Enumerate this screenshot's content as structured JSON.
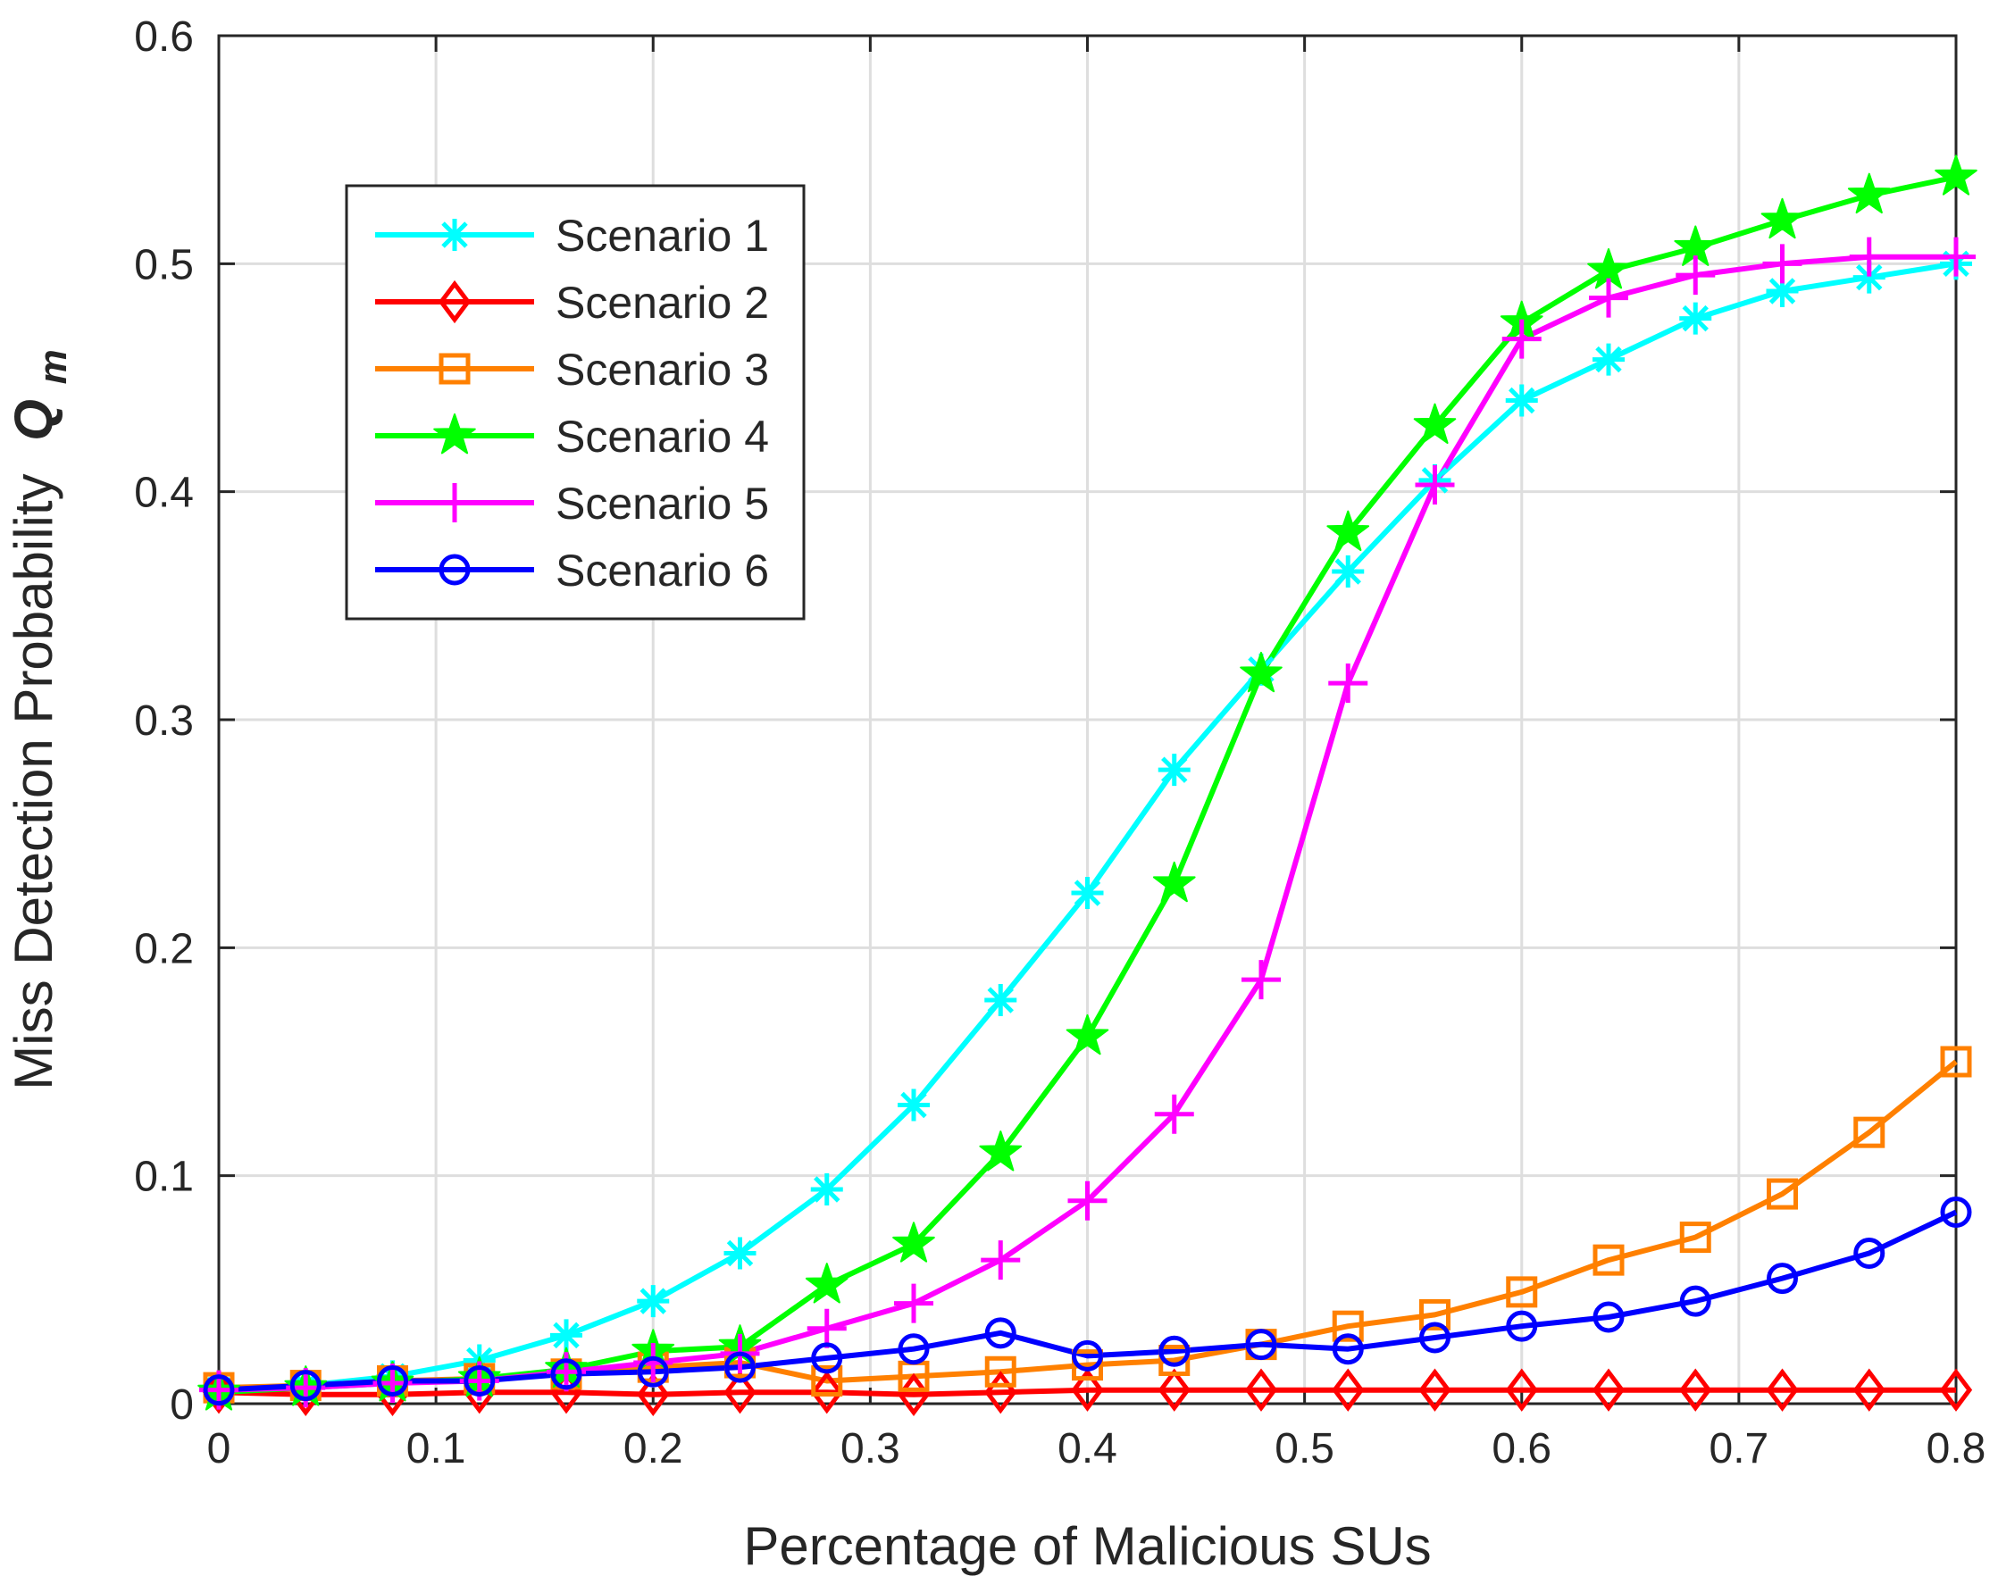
{
  "chart_data": {
    "type": "line",
    "title": "",
    "xlabel": "Percentage of Malicious SUs",
    "ylabel": {
      "text": "Miss Detection Probability",
      "symbol": "Q",
      "subscript": "m"
    },
    "xlim": [
      0,
      0.8
    ],
    "ylim": [
      0,
      0.6
    ],
    "xticks": [
      0,
      0.1,
      0.2,
      0.3,
      0.4,
      0.5,
      0.6,
      0.7,
      0.8
    ],
    "xtick_labels": [
      "0",
      "0.1",
      "0.2",
      "0.3",
      "0.4",
      "0.5",
      "0.6",
      "0.7",
      "0.8"
    ],
    "yticks": [
      0,
      0.1,
      0.2,
      0.3,
      0.4,
      0.5,
      0.6
    ],
    "ytick_labels": [
      "0",
      "0.1",
      "0.2",
      "0.3",
      "0.4",
      "0.5",
      "0.6"
    ],
    "grid": true,
    "legend_position": "top-left",
    "x": [
      0,
      0.04,
      0.08,
      0.12,
      0.16,
      0.2,
      0.24,
      0.28,
      0.32,
      0.36,
      0.4,
      0.44,
      0.48,
      0.52,
      0.56,
      0.6,
      0.64,
      0.68,
      0.72,
      0.76,
      0.8
    ],
    "series": [
      {
        "name": "Scenario 1",
        "color": "#00ffff",
        "marker": "asterisk",
        "values": [
          0.006,
          0.008,
          0.012,
          0.019,
          0.03,
          0.045,
          0.066,
          0.094,
          0.131,
          0.177,
          0.224,
          0.278,
          0.322,
          0.365,
          0.405,
          0.44,
          0.458,
          0.476,
          0.488,
          0.494,
          0.5
        ]
      },
      {
        "name": "Scenario 2",
        "color": "#ff0000",
        "marker": "diamond",
        "values": [
          0.005,
          0.004,
          0.004,
          0.005,
          0.005,
          0.004,
          0.005,
          0.005,
          0.004,
          0.005,
          0.006,
          0.006,
          0.006,
          0.006,
          0.006,
          0.006,
          0.006,
          0.006,
          0.006,
          0.006,
          0.006
        ]
      },
      {
        "name": "Scenario 3",
        "color": "#ff8000",
        "marker": "square",
        "values": [
          0.007,
          0.008,
          0.01,
          0.011,
          0.013,
          0.016,
          0.018,
          0.01,
          0.012,
          0.014,
          0.017,
          0.019,
          0.026,
          0.034,
          0.039,
          0.049,
          0.063,
          0.073,
          0.092,
          0.119,
          0.15
        ]
      },
      {
        "name": "Scenario 4",
        "color": "#00ff00",
        "marker": "pentagram",
        "values": [
          0.005,
          0.007,
          0.009,
          0.011,
          0.015,
          0.023,
          0.025,
          0.052,
          0.07,
          0.11,
          0.161,
          0.228,
          0.32,
          0.382,
          0.429,
          0.474,
          0.497,
          0.507,
          0.519,
          0.53,
          0.538
        ]
      },
      {
        "name": "Scenario 5",
        "color": "#ff00ff",
        "marker": "plus",
        "values": [
          0.006,
          0.007,
          0.009,
          0.01,
          0.014,
          0.018,
          0.022,
          0.033,
          0.044,
          0.063,
          0.089,
          0.127,
          0.186,
          0.316,
          0.403,
          0.467,
          0.485,
          0.495,
          0.5,
          0.503,
          0.503
        ]
      },
      {
        "name": "Scenario 6",
        "color": "#0000ff",
        "marker": "circle",
        "values": [
          0.006,
          0.008,
          0.01,
          0.01,
          0.013,
          0.014,
          0.016,
          0.02,
          0.024,
          0.031,
          0.021,
          0.023,
          0.026,
          0.024,
          0.029,
          0.034,
          0.038,
          0.045,
          0.055,
          0.066,
          0.084
        ]
      }
    ]
  }
}
